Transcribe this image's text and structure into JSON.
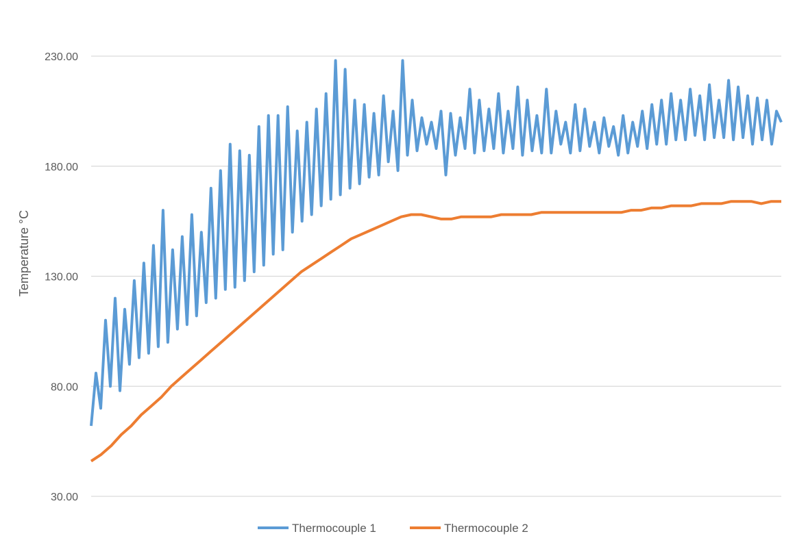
{
  "chart_data": {
    "type": "line",
    "title": "",
    "xlabel": "",
    "ylabel": "Temperature °C",
    "ylim": [
      30,
      230
    ],
    "yticks": [
      "30.00",
      "80.00",
      "130.00",
      "180.00",
      "230.00"
    ],
    "grid": true,
    "legend_position": "bottom",
    "series": [
      {
        "name": "Thermocouple 1",
        "color": "#5b9bd5",
        "values": [
          62,
          86,
          70,
          110,
          80,
          120,
          78,
          115,
          90,
          128,
          93,
          136,
          95,
          144,
          98,
          160,
          100,
          142,
          106,
          148,
          108,
          158,
          112,
          150,
          118,
          170,
          120,
          178,
          124,
          190,
          125,
          187,
          128,
          185,
          132,
          198,
          135,
          203,
          140,
          203,
          142,
          207,
          150,
          196,
          155,
          200,
          158,
          206,
          162,
          213,
          165,
          228,
          167,
          224,
          170,
          210,
          172,
          208,
          175,
          204,
          176,
          212,
          182,
          205,
          178,
          228,
          185,
          210,
          187,
          202,
          190,
          200,
          188,
          205,
          176,
          204,
          185,
          202,
          188,
          215,
          186,
          210,
          187,
          206,
          188,
          213,
          186,
          205,
          188,
          216,
          185,
          210,
          187,
          203,
          186,
          215,
          186,
          205,
          190,
          200,
          186,
          208,
          187,
          206,
          189,
          200,
          186,
          202,
          189,
          198,
          185,
          203,
          186,
          200,
          189,
          205,
          188,
          208,
          190,
          210,
          190,
          213,
          192,
          210,
          192,
          215,
          194,
          212,
          192,
          217,
          193,
          210,
          193,
          219,
          192,
          216,
          193,
          212,
          190,
          211,
          192,
          210,
          190,
          205,
          200
        ]
      },
      {
        "name": "Thermocouple 2",
        "color": "#ed7d31",
        "values": [
          46,
          49,
          53,
          58,
          62,
          67,
          71,
          75,
          80,
          84,
          88,
          92,
          96,
          100,
          104,
          108,
          112,
          116,
          120,
          124,
          128,
          132,
          135,
          138,
          141,
          144,
          147,
          149,
          151,
          153,
          155,
          157,
          158,
          158,
          157,
          156,
          156,
          157,
          157,
          157,
          157,
          158,
          158,
          158,
          158,
          159,
          159,
          159,
          159,
          159,
          159,
          159,
          159,
          159,
          160,
          160,
          161,
          161,
          162,
          162,
          162,
          163,
          163,
          163,
          164,
          164,
          164,
          163,
          164,
          164
        ]
      }
    ]
  }
}
